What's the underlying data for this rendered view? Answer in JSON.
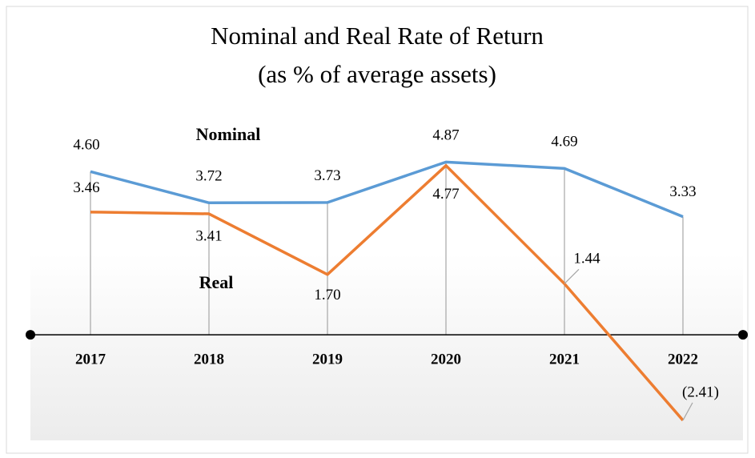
{
  "chart_data": {
    "type": "line",
    "title": "Nominal and Real Rate of Return",
    "subtitle": "(as % of average assets)",
    "categories": [
      "2017",
      "2018",
      "2019",
      "2020",
      "2021",
      "2022"
    ],
    "series": [
      {
        "name": "Nominal",
        "color": "#5b9bd5",
        "values": [
          4.6,
          3.72,
          3.73,
          4.87,
          4.69,
          3.33
        ],
        "value_labels": [
          "4.60",
          "3.72",
          "3.73",
          "4.87",
          "4.69",
          "3.33"
        ]
      },
      {
        "name": "Real",
        "color": "#ed7d31",
        "values": [
          3.46,
          3.41,
          1.7,
          4.77,
          1.44,
          -2.41
        ],
        "value_labels": [
          "3.46",
          "3.41",
          "1.70",
          "4.77",
          "1.44",
          "(2.41)"
        ]
      }
    ],
    "ylim": [
      -2.75,
      5.6
    ]
  }
}
